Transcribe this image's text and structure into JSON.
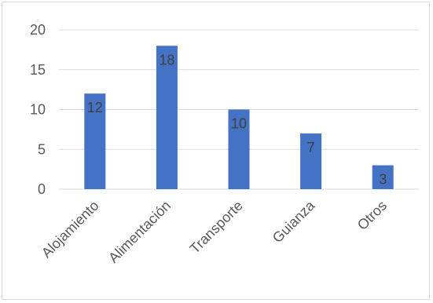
{
  "chart_data": {
    "type": "bar",
    "title": "",
    "xlabel": "",
    "ylabel": "",
    "categories": [
      "Alojamiento",
      "Alimentación",
      "Transporte",
      "Guianza",
      "Otros"
    ],
    "values": [
      12,
      18,
      10,
      7,
      3
    ],
    "data_labels": [
      "12",
      "18",
      "10",
      "7",
      "3"
    ],
    "ylim": [
      0,
      20
    ],
    "yticks": [
      "0",
      "5",
      "10",
      "15",
      "20"
    ],
    "grid": true,
    "legend": "none",
    "colors": {
      "bar": "#4472c4",
      "grid": "#d9d9d9",
      "axis": "#d9d9d9"
    }
  }
}
